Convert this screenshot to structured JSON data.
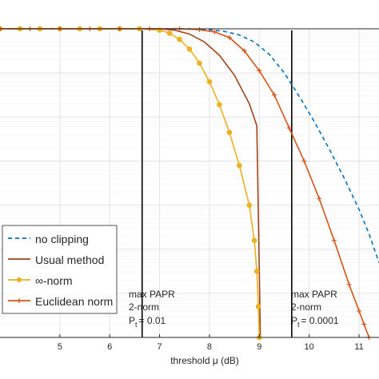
{
  "chart_data": {
    "type": "line",
    "title": "",
    "xlabel": "threshold μ (dB)",
    "ylabel": "",
    "xlim": [
      3.8,
      11.4
    ],
    "ylim": [
      -7,
      0
    ],
    "y_scale": "log",
    "grid": true,
    "legend_placement": "bottom-left",
    "x_ticks": [
      5,
      6,
      7,
      8,
      9,
      10,
      11
    ],
    "series": [
      {
        "name": "no clipping",
        "color": "#0072BD",
        "style": "dashed",
        "marker": "none",
        "x": [
          3.8,
          6.0,
          7.0,
          7.6,
          8.0,
          8.3,
          8.6,
          8.9,
          9.2,
          9.5,
          9.8,
          10.1,
          10.4,
          10.7,
          11.0,
          11.2,
          11.4
        ],
        "log10_y": [
          0,
          0,
          0,
          -0.001,
          -0.02,
          -0.06,
          -0.14,
          -0.3,
          -0.58,
          -1.0,
          -1.53,
          -2.1,
          -2.72,
          -3.38,
          -4.1,
          -4.65,
          -5.3
        ]
      },
      {
        "name": "Usual method",
        "color": "#A2441A",
        "style": "solid",
        "marker": "none",
        "x": [
          3.8,
          6.5,
          7.0,
          7.3,
          7.6,
          7.9,
          8.2,
          8.5,
          8.8,
          8.95,
          9.0,
          9.02
        ],
        "log10_y": [
          0,
          0,
          0,
          -0.03,
          -0.12,
          -0.3,
          -0.6,
          -1.05,
          -1.7,
          -2.2,
          -5.5,
          -7
        ]
      },
      {
        "name": "∞-norm",
        "color": "#EDB120",
        "style": "solid",
        "marker": "circle",
        "x": [
          3.8,
          4.2,
          4.6,
          5.0,
          5.4,
          5.8,
          6.2,
          6.6,
          7.0,
          7.2,
          7.4,
          7.6,
          7.8,
          8.0,
          8.2,
          8.4,
          8.6,
          8.8,
          8.9,
          8.95,
          8.98,
          9.0
        ],
        "log10_y": [
          0,
          0,
          0,
          0,
          0,
          0,
          0,
          0,
          -0.03,
          -0.1,
          -0.24,
          -0.46,
          -0.78,
          -1.2,
          -1.72,
          -2.35,
          -3.1,
          -4.0,
          -4.8,
          -5.5,
          -6.3,
          -7
        ]
      },
      {
        "name": "Euclidean norm",
        "color": "#D95319",
        "style": "solid",
        "marker": "plus",
        "x": [
          3.8,
          4.4,
          5.0,
          5.6,
          6.2,
          6.8,
          7.4,
          7.8,
          8.1,
          8.4,
          8.7,
          9.0,
          9.3,
          9.6,
          9.9,
          10.2,
          10.5,
          10.8,
          11.0,
          11.1,
          11.2
        ],
        "log10_y": [
          0,
          0,
          0,
          0,
          0,
          0,
          -0.002,
          -0.02,
          -0.07,
          -0.2,
          -0.5,
          -0.95,
          -1.5,
          -2.25,
          -3.0,
          -3.85,
          -4.8,
          -5.8,
          -6.4,
          -6.7,
          -7
        ]
      }
    ],
    "annotations": [
      {
        "x": 6.65,
        "lines": [
          "max PAPR",
          "2-norm",
          "P",
          "= 0.01"
        ]
      },
      {
        "x": 9.65,
        "lines": [
          "max PAPR",
          "2-norm",
          "P",
          "= 0.0001"
        ]
      }
    ],
    "annotation_subscript": "t"
  }
}
